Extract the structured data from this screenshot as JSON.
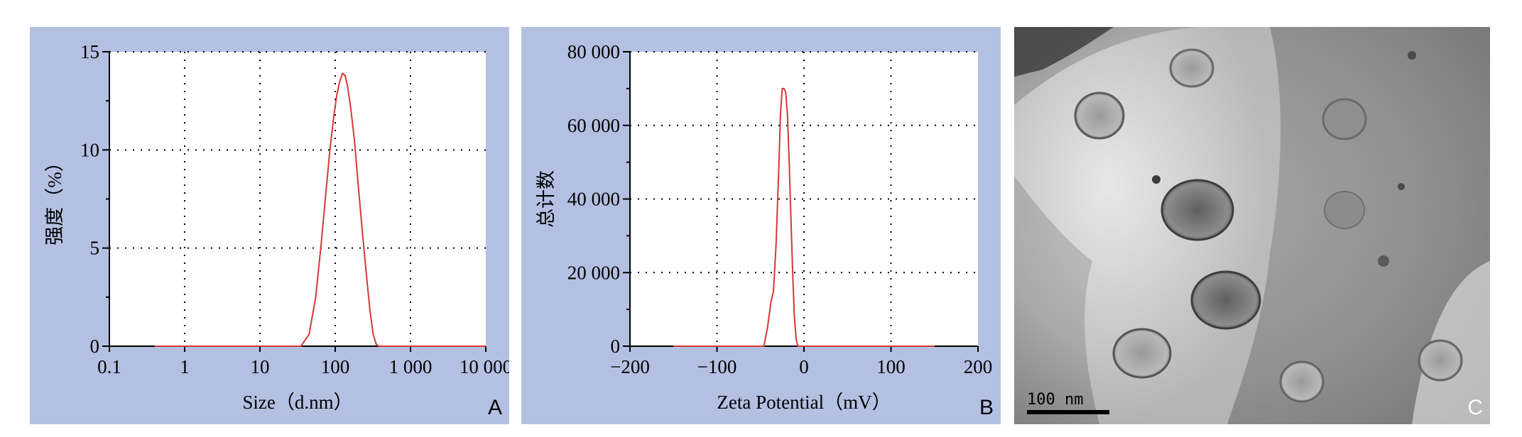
{
  "chart_data": [
    {
      "type": "line",
      "panel_label": "A",
      "xlabel": "Size（d.nm）",
      "ylabel": "强度（%）",
      "xscale": "log",
      "xlim": [
        0.1,
        10000
      ],
      "ylim": [
        0,
        15
      ],
      "xticks": [
        0.1,
        1,
        10,
        100,
        1000,
        10000
      ],
      "xtick_labels": [
        "0.1",
        "1",
        "10",
        "100",
        "1 000",
        "10 000"
      ],
      "yticks": [
        0,
        5,
        10,
        15
      ],
      "ytick_labels": [
        "0",
        "5",
        "10",
        "15"
      ],
      "grid": true,
      "line_color": "#d23a32",
      "series": [
        {
          "x": [
            0.4,
            35,
            45,
            55,
            65,
            75,
            85,
            95,
            105,
            115,
            125,
            135,
            145,
            160,
            180,
            200,
            230,
            260,
            290,
            320,
            350,
            380,
            420,
            10000
          ],
          "y": [
            0,
            0,
            0.6,
            2.5,
            5.2,
            7.8,
            10.0,
            11.6,
            12.8,
            13.5,
            13.9,
            13.8,
            13.3,
            12.2,
            10.5,
            8.4,
            5.8,
            3.6,
            1.8,
            0.6,
            0.1,
            0,
            0,
            0
          ]
        }
      ]
    },
    {
      "type": "line",
      "panel_label": "B",
      "xlabel": "Zeta Potential（mV）",
      "ylabel": "总计数",
      "xlim": [
        -200,
        200
      ],
      "ylim": [
        0,
        80000
      ],
      "xticks": [
        -200,
        -100,
        0,
        100,
        200
      ],
      "xtick_labels": [
        "−200",
        "−100",
        "0",
        "100",
        "200"
      ],
      "yticks": [
        0,
        20000,
        40000,
        60000,
        80000
      ],
      "ytick_labels": [
        "0",
        "20 000",
        "40 000",
        "60 000",
        "80 000"
      ],
      "grid": true,
      "line_color": "#d23a32",
      "series": [
        {
          "x": [
            -150,
            -46,
            -42,
            -38,
            -35,
            -32,
            -29,
            -27,
            -25,
            -23,
            -21,
            -19,
            -17,
            -15,
            -13,
            -11,
            -9,
            -7,
            150
          ],
          "y": [
            0,
            0,
            5000,
            12000,
            15000,
            28000,
            48000,
            63000,
            70000,
            70000,
            69000,
            63000,
            50000,
            35000,
            20000,
            8000,
            2000,
            0,
            0
          ]
        }
      ]
    }
  ],
  "micrograph": {
    "panel_label": "C",
    "scale_bar_label": "100  nm"
  },
  "colors": {
    "panel_background": "#b3c0e2",
    "plot_background": "#ffffff",
    "trace": "#d23a32"
  }
}
